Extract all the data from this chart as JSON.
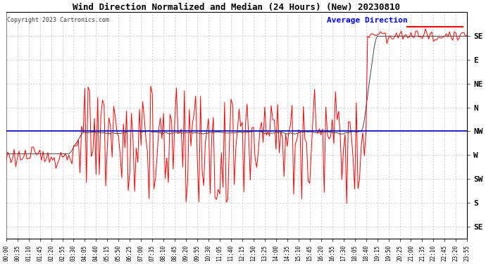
{
  "title": "Wind Direction Normalized and Median (24 Hours) (New) 20230810",
  "copyright": "Copyright 2023 Cartronics.com",
  "legend_label": "Average Direction",
  "background_color": "#ffffff",
  "plot_bg_color": "#ffffff",
  "grid_color": "#bbbbbb",
  "red_line_color": "#ff0000",
  "dark_line_color": "#444444",
  "blue_hline_color": "#0000cc",
  "ytick_labels": [
    "SE",
    "E",
    "NE",
    "N",
    "NW",
    "W",
    "SW",
    "S",
    "SE"
  ],
  "ytick_vals": [
    337.5,
    292.5,
    247.5,
    202.5,
    157.5,
    112.5,
    67.5,
    22.5,
    -22.5
  ],
  "ylim": [
    -45,
    382.5
  ],
  "hline_y": 157.5,
  "xtick_labels": [
    "00:00",
    "00:35",
    "01:10",
    "01:45",
    "02:20",
    "02:55",
    "03:30",
    "04:05",
    "04:40",
    "05:15",
    "05:50",
    "06:25",
    "07:00",
    "07:35",
    "08:10",
    "08:45",
    "09:20",
    "09:55",
    "10:30",
    "11:05",
    "11:40",
    "12:15",
    "12:50",
    "13:25",
    "14:00",
    "14:35",
    "15:10",
    "15:45",
    "16:20",
    "16:55",
    "17:30",
    "18:05",
    "18:40",
    "19:15",
    "19:50",
    "20:25",
    "21:00",
    "21:35",
    "22:10",
    "22:45",
    "23:20",
    "23:55"
  ],
  "title_fontsize": 9,
  "copyright_fontsize": 6,
  "legend_fontsize": 8,
  "ytick_fontsize": 8,
  "xtick_fontsize": 5.5,
  "fig_width": 6.9,
  "fig_height": 3.75,
  "dpi": 100
}
